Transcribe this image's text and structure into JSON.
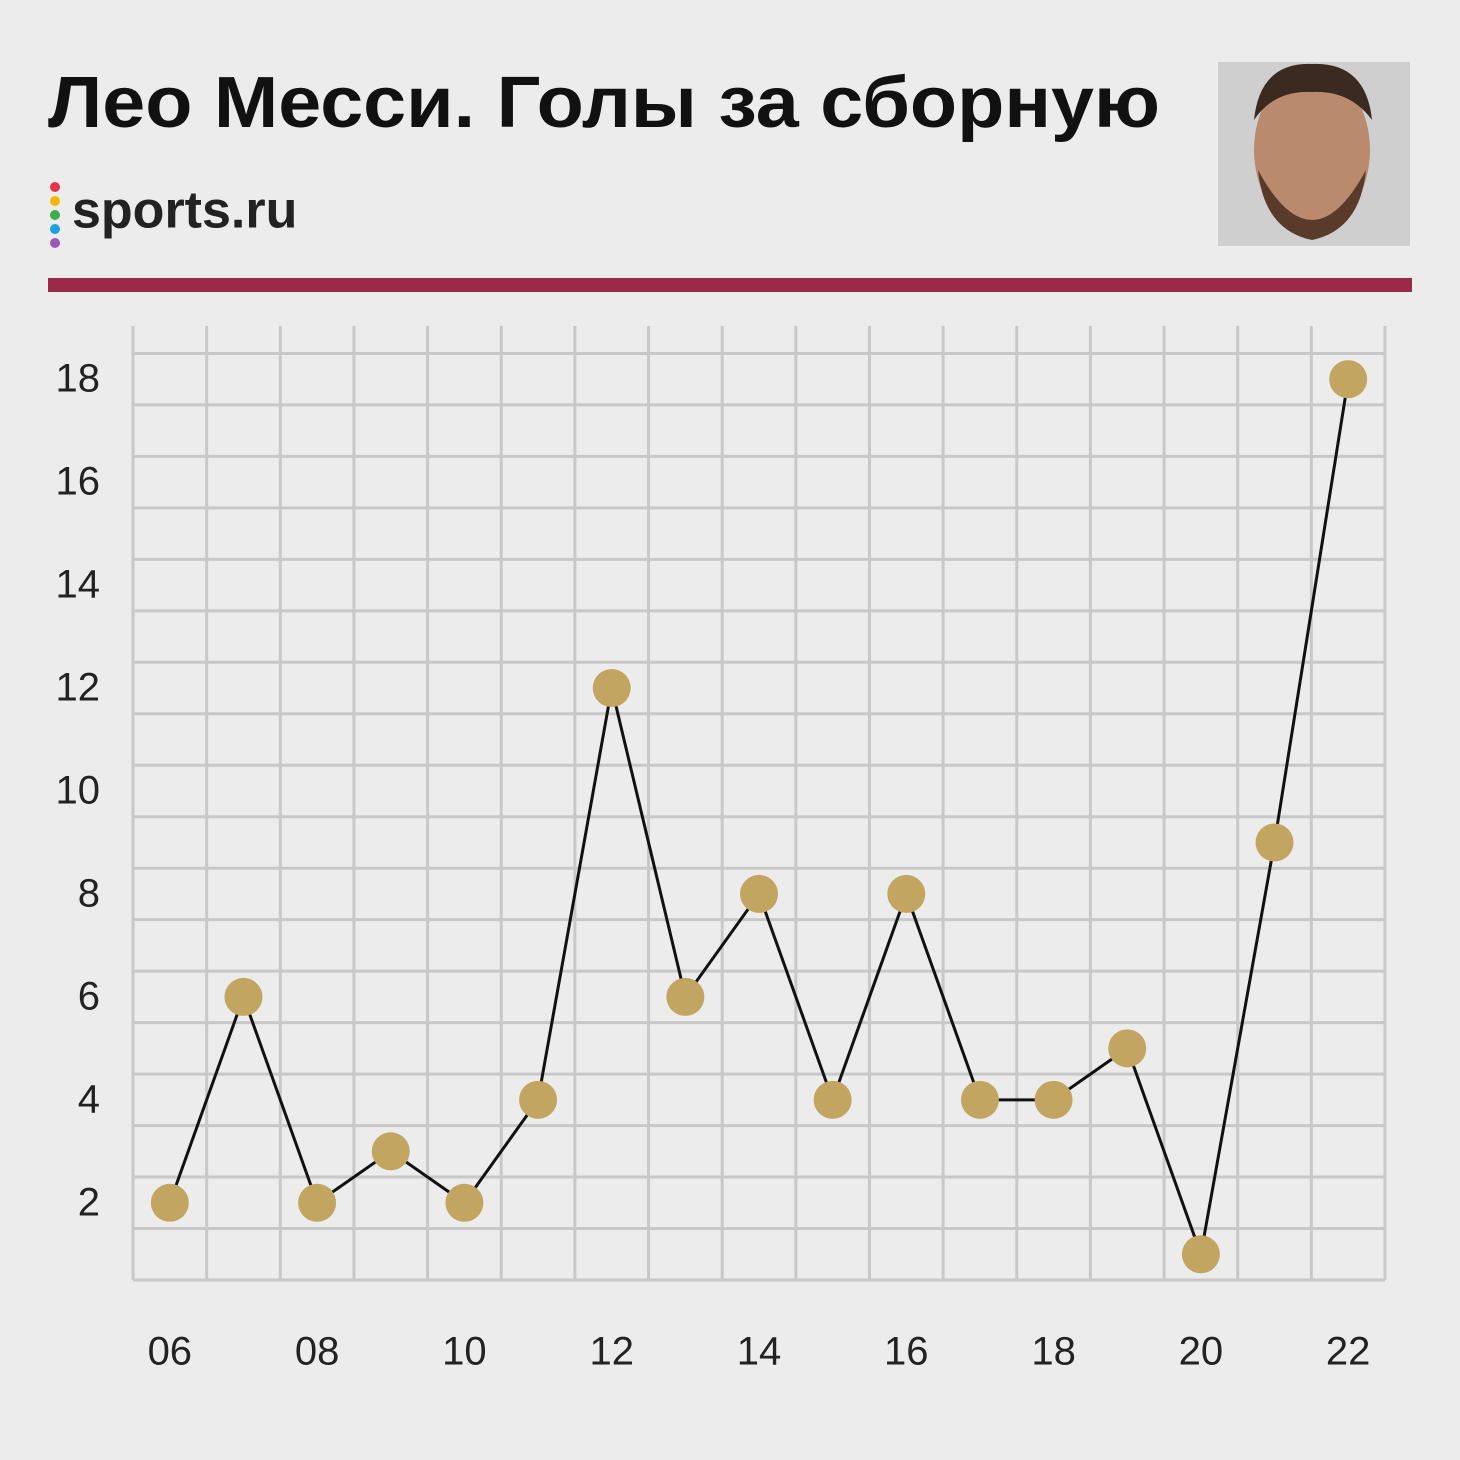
{
  "brand": "sports.ru",
  "chart_data": {
    "type": "line",
    "title": "Лео Месси. Голы за сборную",
    "categories": [
      "06",
      null,
      "08",
      null,
      "10",
      null,
      "12",
      null,
      "14",
      null,
      "16",
      null,
      "18",
      null,
      "20",
      null,
      "22"
    ],
    "series": [
      {
        "values": [
          2,
          6,
          2,
          3,
          2,
          4,
          12,
          6,
          8,
          4,
          8,
          4,
          4,
          5,
          1,
          9,
          18
        ],
        "color": "#c2a561"
      }
    ],
    "ylim": [
      0.5,
      18.8
    ],
    "yticks": [
      2,
      4,
      6,
      8,
      10,
      12,
      14,
      16,
      18
    ],
    "grid": true
  }
}
